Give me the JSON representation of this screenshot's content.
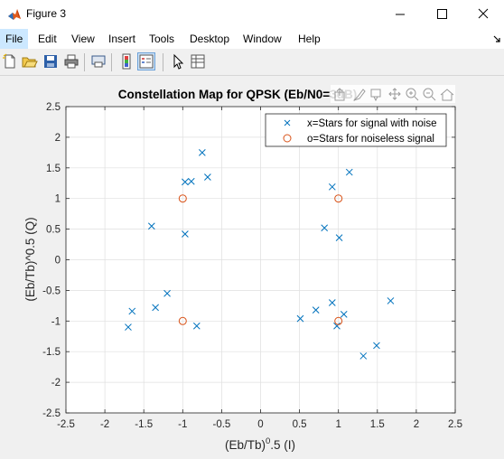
{
  "window": {
    "title": "Figure 3"
  },
  "menu": [
    "File",
    "Edit",
    "View",
    "Insert",
    "Tools",
    "Desktop",
    "Window",
    "Help"
  ],
  "toolbar_icons": [
    "new-figure-icon",
    "open-file-icon",
    "save-icon",
    "print-icon",
    "print-preview-icon",
    "colorbar-icon",
    "legend-icon",
    "pointer-icon",
    "property-inspector-icon"
  ],
  "axes_toolbar_icons": [
    "export-icon",
    "brush-icon",
    "datatip-icon",
    "pan-icon",
    "zoom-in-icon",
    "zoom-out-icon",
    "home-icon"
  ],
  "colors": {
    "series_noise": "#0072bd",
    "series_noiseless": "#d95319",
    "grid": "#dfdfdf"
  },
  "chart_data": {
    "type": "scatter",
    "title": "Constellation Map for QPSK (Eb/N0=3dB)",
    "xlabel": {
      "base": "(Eb/Tb)",
      "sup": "0",
      "rest": ".5 (I)"
    },
    "ylabel": "(Eb/Tb)^0.5 (Q)",
    "xlim": [
      -2.5,
      2.5
    ],
    "ylim": [
      -2.5,
      2.5
    ],
    "xticks": [
      "-2.5",
      "-2",
      "-1.5",
      "-1",
      "-0.5",
      "0",
      "0.5",
      "1",
      "1.5",
      "2",
      "2.5"
    ],
    "yticks": [
      "2.5",
      "2",
      "1.5",
      "1",
      "0.5",
      "0",
      "-0.5",
      "-1",
      "-1.5",
      "-2",
      "-2.5"
    ],
    "grid": true,
    "legend_position": "top-right",
    "series": [
      {
        "name": "x=Stars for signal with noise",
        "marker": "x",
        "x": [
          -0.75,
          -0.68,
          -0.97,
          -0.89,
          -1.4,
          -0.97,
          -1.2,
          -1.35,
          -1.65,
          -1.7,
          -0.82,
          1.14,
          0.92,
          1.01,
          0.82,
          0.92,
          0.51,
          0.71,
          1.07,
          0.98,
          1.67,
          1.49,
          1.32
        ],
        "y": [
          1.75,
          1.35,
          1.27,
          1.28,
          0.55,
          0.42,
          -0.55,
          -0.78,
          -0.84,
          -1.1,
          -1.08,
          1.43,
          1.19,
          0.36,
          0.52,
          -0.7,
          -0.96,
          -0.82,
          -0.89,
          -1.08,
          -0.67,
          -1.4,
          -1.57
        ]
      },
      {
        "name": "o=Stars for noiseless signal",
        "marker": "o",
        "x": [
          -1,
          1,
          -1,
          1
        ],
        "y": [
          1,
          1,
          -1,
          -1
        ]
      }
    ]
  }
}
